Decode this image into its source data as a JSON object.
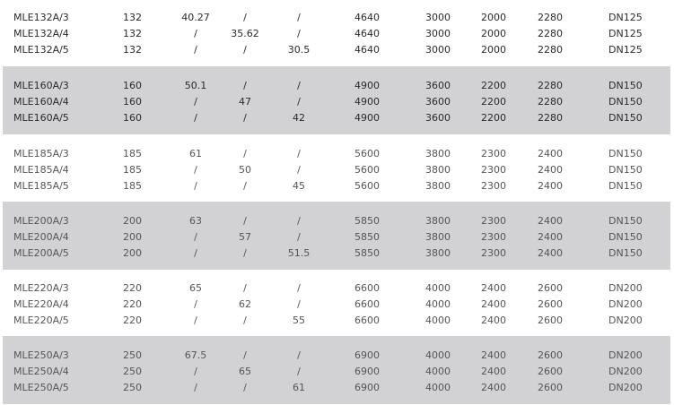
{
  "groups": [
    {
      "rows": [
        [
          "MLE132A/3",
          "132",
          "40.27",
          "/",
          "/",
          "4640",
          "3000",
          "2000",
          "2280",
          "DN125"
        ],
        [
          "MLE132A/4",
          "132",
          "/",
          "35.62",
          "/",
          "4640",
          "3000",
          "2000",
          "2280",
          "DN125"
        ],
        [
          "MLE132A/5",
          "132",
          "/",
          "/",
          "30.5",
          "4640",
          "3000",
          "2000",
          "2280",
          "DN125"
        ]
      ]
    },
    {
      "rows": [
        [
          "MLE160A/3",
          "160",
          "50.1",
          "/",
          "/",
          "4900",
          "3600",
          "2200",
          "2280",
          "DN150"
        ],
        [
          "MLE160A/4",
          "160",
          "/",
          "47",
          "/",
          "4900",
          "3600",
          "2200",
          "2280",
          "DN150"
        ],
        [
          "MLE160A/5",
          "160",
          "/",
          "/",
          "42",
          "4900",
          "3600",
          "2200",
          "2280",
          "DN150"
        ]
      ]
    },
    {
      "rows": [
        [
          "MLE185A/3",
          "185",
          "61",
          "/",
          "/",
          "5600",
          "3800",
          "2300",
          "2400",
          "DN150"
        ],
        [
          "MLE185A/4",
          "185",
          "/",
          "50",
          "/",
          "5600",
          "3800",
          "2300",
          "2400",
          "DN150"
        ],
        [
          "MLE185A/5",
          "185",
          "/",
          "/",
          "45",
          "5600",
          "3800",
          "2300",
          "2400",
          "DN150"
        ]
      ]
    },
    {
      "rows": [
        [
          "MLE200A/3",
          "200",
          "63",
          "/",
          "/",
          "5850",
          "3800",
          "2300",
          "2400",
          "DN150"
        ],
        [
          "MLE200A/4",
          "200",
          "/",
          "57",
          "/",
          "5850",
          "3800",
          "2300",
          "2400",
          "DN150"
        ],
        [
          "MLE200A/5",
          "200",
          "/",
          "/",
          "51.5",
          "5850",
          "3800",
          "2300",
          "2400",
          "DN150"
        ]
      ]
    },
    {
      "rows": [
        [
          "MLE220A/3",
          "220",
          "65",
          "/",
          "/",
          "6600",
          "4000",
          "2400",
          "2600",
          "DN200"
        ],
        [
          "MLE220A/4",
          "220",
          "/",
          "62",
          "/",
          "6600",
          "4000",
          "2400",
          "2600",
          "DN200"
        ],
        [
          "MLE220A/5",
          "220",
          "/",
          "/",
          "55",
          "6600",
          "4000",
          "2400",
          "2600",
          "DN200"
        ]
      ]
    },
    {
      "rows": [
        [
          "MLE250A/3",
          "250",
          "67.5",
          "/",
          "/",
          "6900",
          "4000",
          "2400",
          "2600",
          "DN200"
        ],
        [
          "MLE250A/4",
          "250",
          "/",
          "65",
          "/",
          "6900",
          "4000",
          "2400",
          "2600",
          "DN200"
        ],
        [
          "MLE250A/5",
          "250",
          "/",
          "/",
          "61",
          "6900",
          "4000",
          "2400",
          "2600",
          "DN200"
        ]
      ]
    }
  ],
  "colors": {
    "shade": "#d2d2d4",
    "text_dark": "#2a2a2a",
    "text_light": "#555555"
  }
}
